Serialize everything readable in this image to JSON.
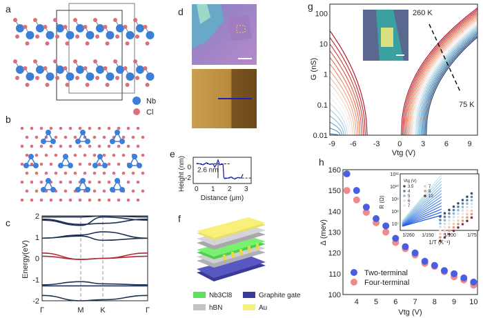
{
  "panels": {
    "a": "a",
    "b": "b",
    "c": "c",
    "d": "d",
    "e": "e",
    "f": "f",
    "g": "g",
    "h": "h"
  },
  "legend_a": [
    {
      "label": "Nb",
      "color": "#3b7fd6"
    },
    {
      "label": "Cl",
      "color": "#d9707a"
    }
  ],
  "legend_f": [
    {
      "label": "Nb3Cl8",
      "color": "#5ee05a"
    },
    {
      "label": "Graphite gate",
      "color": "#3a3a9a"
    },
    {
      "label": "hBN",
      "color": "#c4c4c8"
    },
    {
      "label": "Au",
      "color": "#f4f27a"
    }
  ],
  "chart_data": [
    {
      "id": "c",
      "type": "line",
      "ylabel": "Energy(eV)",
      "ylim": [
        -2,
        2
      ],
      "yticks": [
        "2",
        "1",
        "0",
        "-1",
        "-2"
      ],
      "xticks": [
        "Γ",
        "M",
        "K",
        "Γ"
      ],
      "bands": [
        {
          "color": "#1c2f4f",
          "values": [
            1.95,
            1.95,
            2.0,
            1.95
          ]
        },
        {
          "color": "#1c2f4f",
          "values": [
            1.85,
            1.6,
            1.65,
            1.85
          ]
        },
        {
          "color": "#1c2f4f",
          "values": [
            1.8,
            1.55,
            1.95,
            1.8
          ]
        },
        {
          "color": "#1c2f4f",
          "values": [
            0.95,
            1.1,
            1.25,
            0.95
          ]
        },
        {
          "color": "#1c2f4f",
          "values": [
            0.95,
            1.05,
            0.85,
            0.95
          ]
        },
        {
          "color": "#b2272f",
          "values": [
            0.25,
            -0.05,
            0.0,
            0.25
          ]
        },
        {
          "color": "#b2272f",
          "values": [
            0.1,
            -0.05,
            0.0,
            0.1
          ]
        },
        {
          "color": "#1c2f4f",
          "values": [
            -1.25,
            -1.1,
            -1.2,
            -1.25
          ]
        },
        {
          "color": "#1c2f4f",
          "values": [
            -1.3,
            -1.3,
            -1.3,
            -1.3
          ]
        },
        {
          "color": "#1c2f4f",
          "values": [
            -1.75,
            -2.0,
            -1.95,
            -1.75
          ]
        }
      ]
    },
    {
      "id": "e",
      "type": "line",
      "ylabel": "Height (nm)",
      "xlabel": "Distance (μm)",
      "xlim": [
        -0.2,
        3.3
      ],
      "ylim": [
        -3,
        1.8
      ],
      "xticks": [
        "0",
        "1",
        "2",
        "3"
      ],
      "yticks": [
        "0",
        "-2"
      ],
      "annotation": "2.6 nm",
      "x": [
        0,
        0.2,
        0.4,
        0.6,
        0.8,
        1.0,
        1.1,
        1.2,
        1.3,
        1.4,
        1.5,
        1.6,
        1.65,
        1.7,
        1.9,
        2.1,
        2.3,
        2.5,
        2.7,
        2.8
      ],
      "y": [
        0.7,
        0.6,
        0.4,
        0.8,
        0.5,
        0.6,
        0.0,
        0.5,
        1.3,
        0.4,
        0.5,
        0.5,
        -1.9,
        -2.1,
        -2.0,
        -1.8,
        -2.2,
        -1.9,
        -2.0,
        -1.3
      ]
    },
    {
      "id": "g",
      "type": "line",
      "ylabel": "G (nS)",
      "xlabel": "Vtg (V)",
      "yscale": "log",
      "ylim": [
        0.01,
        200
      ],
      "xlim": [
        -9,
        10
      ],
      "xticks": [
        "-9",
        "-6",
        "-3",
        "0",
        "3",
        "6",
        "9"
      ],
      "yticks": [
        "100",
        "10",
        "1",
        "0.1",
        "0.01"
      ],
      "annotations": [
        "260 K",
        "75 K"
      ],
      "temperature_range_K": [
        75,
        260
      ],
      "curve_count": 20
    },
    {
      "id": "h",
      "type": "scatter",
      "ylabel": "Δ (mev)",
      "xlabel": "Vtg (V)",
      "ylim": [
        100,
        160
      ],
      "xlim": [
        3.3,
        10.2
      ],
      "xticks": [
        "4",
        "5",
        "6",
        "7",
        "8",
        "9",
        "10"
      ],
      "yticks": [
        "160",
        "150",
        "140",
        "130",
        "120",
        "110",
        "100"
      ],
      "x": [
        3.5,
        4,
        4.5,
        5,
        5.5,
        6,
        6.5,
        7,
        7.5,
        8,
        8.5,
        9,
        9.5,
        10
      ],
      "series": [
        {
          "name": "Two-terminal",
          "color": "#4a5fe0",
          "values": [
            158,
            150,
            142,
            136.5,
            133,
            127,
            123,
            120,
            116,
            114,
            111.5,
            110,
            108,
            106
          ]
        },
        {
          "name": "Four-terminal",
          "color": "#f08a8a",
          "values": [
            150,
            145.5,
            139.5,
            134.5,
            130,
            125,
            122,
            119,
            115,
            113.5,
            111,
            108.5,
            107,
            104.5
          ]
        }
      ],
      "inset": {
        "ylabel": "R (Ω)",
        "xlabel": "1/T (K⁻¹)",
        "yscale": "log",
        "yticks": [
          "10¹¹",
          "10¹⁰",
          "10⁹",
          "10⁸",
          "10⁷"
        ],
        "xticks": [
          "1/260",
          "1/150",
          "1/100",
          "1/75"
        ],
        "legend_title": "Vtg (V)",
        "legend": [
          "3.5",
          "4",
          "5",
          "6",
          "7",
          "7",
          "8",
          "10"
        ]
      }
    }
  ]
}
